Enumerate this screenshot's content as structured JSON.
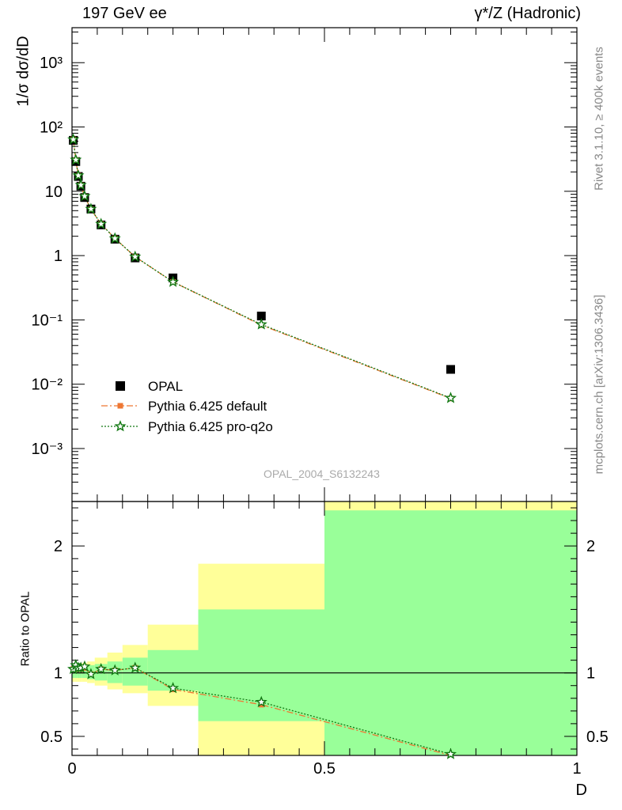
{
  "header": {
    "left": "197 GeV ee",
    "right": "γ*/Z (Hadronic)"
  },
  "side_labels": {
    "rivet": "Rivet 3.1.10, ≥ 400k events",
    "mcplots": "mcplots.cern.ch [arXiv:1306.3436]"
  },
  "watermark": "OPAL_2004_S6132243",
  "colors": {
    "opal": "#000000",
    "pythia_default": "#ee7733",
    "pythia_proq2o": "#117711",
    "band_outer": "#ffff99",
    "band_inner": "#99ff99"
  },
  "chart_data": [
    {
      "type": "scatter",
      "ylabel": "1/σ dσ/dD",
      "xlabel": "",
      "log_y": true,
      "ylim": [
        0.00015,
        3500
      ],
      "xlim": [
        0,
        1
      ],
      "y_ticks": [
        "10⁻³",
        "10⁻²",
        "10⁻¹",
        "1",
        "10",
        "10²",
        "10³"
      ],
      "legend_position": "lower-left",
      "legend": [
        "OPAL",
        "Pythia 6.425 default",
        "Pythia 6.425 pro-q2o"
      ],
      "series": [
        {
          "name": "OPAL",
          "marker": "square",
          "x": [
            0.0025,
            0.0075,
            0.0125,
            0.0175,
            0.025,
            0.0375,
            0.0575,
            0.085,
            0.125,
            0.2,
            0.375,
            0.75
          ],
          "y": [
            62,
            29,
            17,
            12,
            8.0,
            5.3,
            3.0,
            1.8,
            0.92,
            0.45,
            0.115,
            0.017
          ]
        },
        {
          "name": "Pythia 6.425 default",
          "marker": "square-small",
          "line": "dash-dot",
          "x": [
            0.0025,
            0.0075,
            0.0125,
            0.0175,
            0.025,
            0.0375,
            0.0575,
            0.085,
            0.125,
            0.2,
            0.375,
            0.75
          ],
          "y": [
            64,
            30.5,
            17.5,
            12.4,
            8.3,
            5.25,
            3.1,
            1.85,
            0.96,
            0.39,
            0.083,
            0.006
          ]
        },
        {
          "name": "Pythia 6.425 pro-q2o",
          "marker": "star",
          "line": "dotted",
          "x": [
            0.0025,
            0.0075,
            0.0125,
            0.0175,
            0.025,
            0.0375,
            0.0575,
            0.085,
            0.125,
            0.2,
            0.375,
            0.75
          ],
          "y": [
            64,
            30.8,
            17.6,
            12.5,
            8.4,
            5.3,
            3.1,
            1.85,
            0.96,
            0.39,
            0.085,
            0.0061
          ]
        }
      ]
    },
    {
      "type": "line",
      "ylabel": "Ratio to OPAL",
      "xlabel": "D",
      "ylim": [
        0.35,
        2.35
      ],
      "xlim": [
        0,
        1
      ],
      "x_ticks": [
        "0",
        "0.5",
        "1"
      ],
      "y_ticks": [
        "0.5",
        "1",
        "2"
      ],
      "bands": [
        {
          "x0": 0.0,
          "x1": 0.005,
          "inner": [
            0.96,
            1.04
          ],
          "outer": [
            0.93,
            1.07
          ]
        },
        {
          "x0": 0.005,
          "x1": 0.01,
          "inner": [
            0.96,
            1.04
          ],
          "outer": [
            0.93,
            1.07
          ]
        },
        {
          "x0": 0.01,
          "x1": 0.015,
          "inner": [
            0.96,
            1.05
          ],
          "outer": [
            0.93,
            1.07
          ]
        },
        {
          "x0": 0.015,
          "x1": 0.02,
          "inner": [
            0.96,
            1.05
          ],
          "outer": [
            0.93,
            1.07
          ]
        },
        {
          "x0": 0.02,
          "x1": 0.03,
          "inner": [
            0.96,
            1.05
          ],
          "outer": [
            0.93,
            1.08
          ]
        },
        {
          "x0": 0.03,
          "x1": 0.045,
          "inner": [
            0.95,
            1.06
          ],
          "outer": [
            0.92,
            1.09
          ]
        },
        {
          "x0": 0.045,
          "x1": 0.07,
          "inner": [
            0.94,
            1.07
          ],
          "outer": [
            0.9,
            1.12
          ]
        },
        {
          "x0": 0.07,
          "x1": 0.1,
          "inner": [
            0.92,
            1.09
          ],
          "outer": [
            0.87,
            1.16
          ]
        },
        {
          "x0": 0.1,
          "x1": 0.15,
          "inner": [
            0.9,
            1.12
          ],
          "outer": [
            0.84,
            1.22
          ]
        },
        {
          "x0": 0.15,
          "x1": 0.25,
          "inner": [
            0.86,
            1.18
          ],
          "outer": [
            0.74,
            1.38
          ]
        },
        {
          "x0": 0.25,
          "x1": 0.5,
          "inner": [
            0.62,
            1.5
          ],
          "outer": [
            0.35,
            1.86
          ]
        },
        {
          "x0": 0.5,
          "x1": 1.0,
          "inner": [
            0.35,
            2.28
          ],
          "outer": [
            0.35,
            2.35
          ]
        }
      ],
      "series": [
        {
          "name": "Pythia 6.425 default",
          "x": [
            0.0025,
            0.0075,
            0.0125,
            0.0175,
            0.025,
            0.0375,
            0.0575,
            0.085,
            0.125,
            0.2,
            0.375,
            0.75
          ],
          "y": [
            1.03,
            1.05,
            1.03,
            1.03,
            1.04,
            0.99,
            1.03,
            1.02,
            1.04,
            0.87,
            0.75,
            0.35
          ]
        },
        {
          "name": "Pythia 6.425 pro-q2o",
          "x": [
            0.0025,
            0.0075,
            0.0125,
            0.0175,
            0.025,
            0.0375,
            0.0575,
            0.085,
            0.125,
            0.2,
            0.375,
            0.75
          ],
          "y": [
            1.03,
            1.06,
            1.04,
            1.04,
            1.05,
            0.99,
            1.03,
            1.02,
            1.04,
            0.88,
            0.77,
            0.36
          ]
        }
      ]
    }
  ]
}
